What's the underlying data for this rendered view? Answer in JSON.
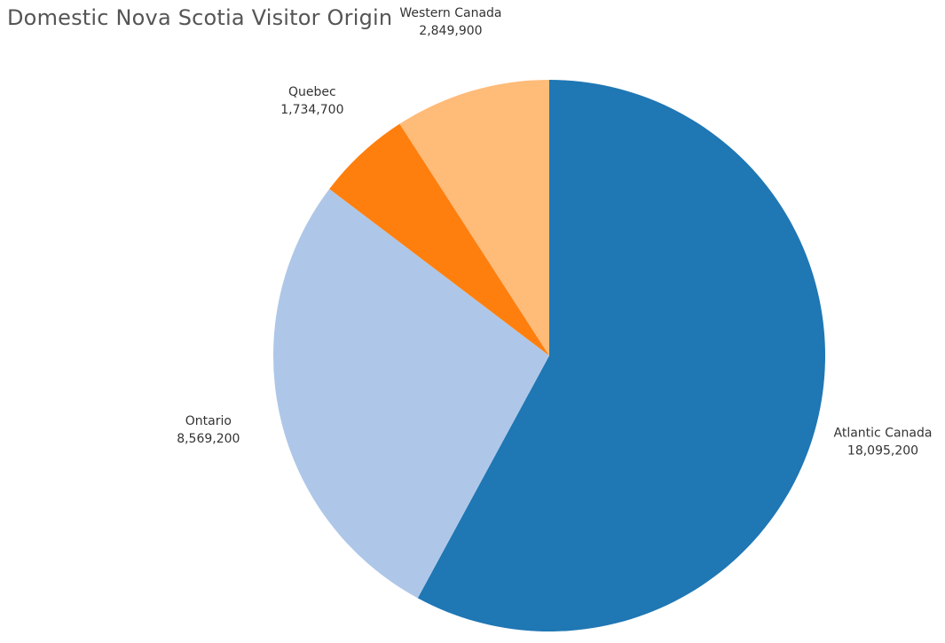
{
  "chart_data": {
    "type": "pie",
    "title": "Domestic Nova Scotia Visitor Origin",
    "categories": [
      "Atlantic Canada",
      "Ontario",
      "Quebec",
      "Western Canada"
    ],
    "values": [
      18095200,
      8569200,
      1734700,
      2849900
    ],
    "value_labels": [
      "18,095,200",
      "8,569,200",
      "1,734,700",
      "2,849,900"
    ],
    "colors": [
      "#1f77b4",
      "#aec7e8",
      "#ff7f0e",
      "#ffbb78"
    ],
    "start_angle": "12 o'clock",
    "direction": "clockwise",
    "legend": "none"
  }
}
